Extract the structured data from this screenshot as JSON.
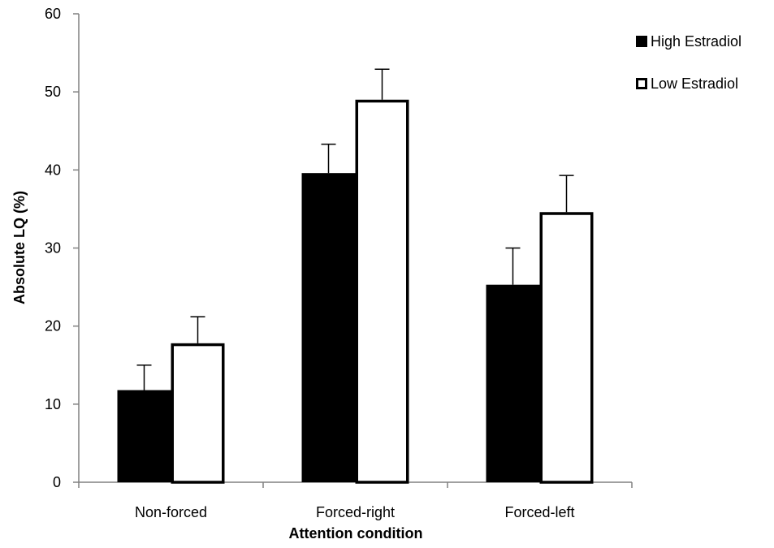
{
  "chart_data": {
    "type": "bar",
    "title": "",
    "xlabel": "Attention condition",
    "ylabel": "Absolute LQ (%)",
    "ylim": [
      0,
      60
    ],
    "yticks": [
      "0",
      "10",
      "20",
      "30",
      "40",
      "50",
      "60"
    ],
    "categories": [
      "Non-forced",
      "Forced-right",
      "Forced-left"
    ],
    "series": [
      {
        "name": "High Estradiol",
        "fill": "#000000",
        "values": [
          11.8,
          39.6,
          25.3
        ],
        "error_upper": [
          15.0,
          43.3,
          30.0
        ]
      },
      {
        "name": "Low Estradiol",
        "fill": "#ffffff",
        "values": [
          17.8,
          49.0,
          34.6
        ],
        "error_upper": [
          21.2,
          52.9,
          39.3
        ]
      }
    ],
    "grid": false,
    "legend_position": "top-right",
    "colors": {
      "stroke": "#000000",
      "high": "#000000",
      "low": "#ffffff",
      "axis": "#808080"
    }
  }
}
